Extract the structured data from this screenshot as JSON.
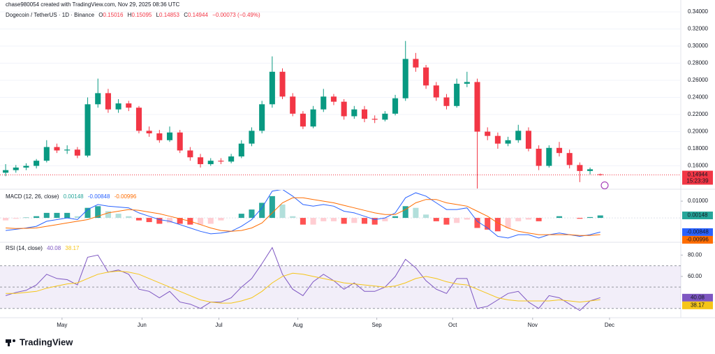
{
  "header": {
    "credit": "chase980054 created with TradingView.com, Nov 29, 2025 08:36 UTC",
    "ohlc_labels": [
      "O",
      "H",
      "L",
      "C"
    ],
    "change": "−0.00073 (−0.49%)",
    "countdown": "15:23:39",
    "brand": "TradingView"
  },
  "chart_data": [
    {
      "type": "candlestick",
      "title": "Dogecoin / TetherUS · 1D · Binance",
      "up_color": "#089981",
      "down_color": "#f23645",
      "grid": true,
      "xlim": [
        -0.55,
        65.85
      ],
      "ylim": [
        0.1335,
        0.3441
      ],
      "yticks": [
        {
          "value": 0.34,
          "label": "0.34000"
        },
        {
          "value": 0.32,
          "label": "0.32000"
        },
        {
          "value": 0.3,
          "label": "0.30000"
        },
        {
          "value": 0.28,
          "label": "0.28000"
        },
        {
          "value": 0.26,
          "label": "0.26000"
        },
        {
          "value": 0.24,
          "label": "0.24000"
        },
        {
          "value": 0.22,
          "label": "0.22000"
        },
        {
          "value": 0.2,
          "label": "0.20000"
        },
        {
          "value": 0.18,
          "label": "0.18000"
        },
        {
          "value": 0.16,
          "label": "0.16000"
        }
      ],
      "open": [
        0.152,
        0.155,
        0.158,
        0.16,
        0.166,
        0.182,
        0.178,
        0.179,
        0.172,
        0.232,
        0.245,
        0.226,
        0.233,
        0.228,
        0.201,
        0.198,
        0.19,
        0.199,
        0.178,
        0.17,
        0.162,
        0.166,
        0.165,
        0.171,
        0.186,
        0.201,
        0.232,
        0.27,
        0.241,
        0.221,
        0.206,
        0.226,
        0.241,
        0.235,
        0.218,
        0.226,
        0.215,
        0.214,
        0.221,
        0.239,
        0.285,
        0.275,
        0.254,
        0.24,
        0.23,
        0.256,
        0.258,
        0.2,
        0.195,
        0.186,
        0.19,
        0.201,
        0.18,
        0.16,
        0.181,
        0.175,
        0.161,
        0.154,
        0.15016
      ],
      "high": [
        0.162,
        0.161,
        0.163,
        0.168,
        0.19,
        0.186,
        0.184,
        0.182,
        0.24,
        0.262,
        0.25,
        0.238,
        0.236,
        0.23,
        0.206,
        0.202,
        0.206,
        0.202,
        0.182,
        0.174,
        0.169,
        0.169,
        0.174,
        0.19,
        0.205,
        0.236,
        0.288,
        0.274,
        0.245,
        0.224,
        0.23,
        0.25,
        0.244,
        0.238,
        0.23,
        0.23,
        0.219,
        0.224,
        0.243,
        0.306,
        0.292,
        0.278,
        0.258,
        0.244,
        0.262,
        0.27,
        0.262,
        0.205,
        0.199,
        0.194,
        0.208,
        0.205,
        0.184,
        0.184,
        0.188,
        0.179,
        0.164,
        0.158,
        0.15095
      ],
      "low": [
        0.148,
        0.152,
        0.155,
        0.157,
        0.164,
        0.175,
        0.174,
        0.169,
        0.17,
        0.228,
        0.222,
        0.222,
        0.224,
        0.198,
        0.194,
        0.187,
        0.188,
        0.175,
        0.166,
        0.158,
        0.16,
        0.162,
        0.163,
        0.169,
        0.183,
        0.198,
        0.228,
        0.238,
        0.218,
        0.203,
        0.204,
        0.223,
        0.231,
        0.214,
        0.215,
        0.211,
        0.21,
        0.212,
        0.219,
        0.236,
        0.27,
        0.25,
        0.236,
        0.226,
        0.228,
        0.252,
        0.133,
        0.19,
        0.18,
        0.183,
        0.187,
        0.177,
        0.155,
        0.158,
        0.171,
        0.157,
        0.141,
        0.15,
        0.14853
      ],
      "close": [
        0.155,
        0.158,
        0.16,
        0.166,
        0.182,
        0.178,
        0.179,
        0.172,
        0.232,
        0.245,
        0.226,
        0.233,
        0.228,
        0.201,
        0.198,
        0.19,
        0.199,
        0.178,
        0.17,
        0.162,
        0.166,
        0.165,
        0.171,
        0.186,
        0.201,
        0.232,
        0.27,
        0.241,
        0.221,
        0.206,
        0.226,
        0.241,
        0.235,
        0.218,
        0.226,
        0.215,
        0.214,
        0.221,
        0.239,
        0.285,
        0.275,
        0.254,
        0.24,
        0.23,
        0.256,
        0.258,
        0.2,
        0.195,
        0.186,
        0.19,
        0.201,
        0.18,
        0.16,
        0.181,
        0.175,
        0.161,
        0.154,
        0.156,
        0.14944
      ]
    },
    {
      "type": "macd",
      "title": "MACD (12, 26, close)",
      "xlim": [
        -0.55,
        65.85
      ],
      "ylim": [
        -0.0133,
        0.0167
      ],
      "yticks": [
        {
          "value": 0.01,
          "label": "0.01000"
        }
      ],
      "hist_colors": [
        "#26a69a",
        "#b2dfdb",
        "#ffcdd2",
        "#ff5252"
      ],
      "series": [
        {
          "name": "Histogram",
          "color": "#26a69a",
          "values": [
            -0.0015,
            -0.0005,
            0.0002,
            0.001,
            0.003,
            0.003,
            0.003,
            0.001,
            0.006,
            0.007,
            0.004,
            0.0025,
            0.001,
            -0.0015,
            -0.0025,
            -0.0035,
            -0.003,
            -0.0035,
            -0.004,
            -0.004,
            -0.0035,
            -0.0015,
            0,
            0.0025,
            0.005,
            0.009,
            0.013,
            0.008,
            0.001,
            -0.004,
            -0.004,
            -0.002,
            -0.002,
            -0.0035,
            -0.003,
            -0.0035,
            -0.004,
            -0.002,
            0.001,
            0.007,
            0.006,
            0.002,
            -0.002,
            -0.004,
            -0.003,
            -0.001,
            -0.006,
            -0.007,
            -0.008,
            -0.006,
            -0.002,
            -0.001,
            -0.002,
            0,
            0.001,
            0,
            -0.0005,
            0.0005,
            0.00148
          ]
        },
        {
          "name": "MACD",
          "color": "#2962ff",
          "values": [
            -0.0075,
            -0.0068,
            -0.006,
            -0.005,
            -0.002,
            -0.001,
            0.0,
            -0.001,
            0.005,
            0.008,
            0.007,
            0.0065,
            0.006,
            0.003,
            0.001,
            -0.001,
            -0.002,
            -0.004,
            -0.006,
            -0.008,
            -0.0095,
            -0.009,
            -0.008,
            -0.005,
            -0.001,
            0.006,
            0.016,
            0.017,
            0.013,
            0.008,
            0.007,
            0.008,
            0.007,
            0.004,
            0.003,
            0.001,
            -0.001,
            0.0,
            0.003,
            0.012,
            0.015,
            0.013,
            0.009,
            0.005,
            0.005,
            0.006,
            -0.002,
            -0.006,
            -0.011,
            -0.012,
            -0.01,
            -0.01,
            -0.012,
            -0.01,
            -0.009,
            -0.01,
            -0.011,
            -0.01,
            -0.00848
          ]
        },
        {
          "name": "Signal",
          "color": "#ff6d00",
          "values": [
            -0.006,
            -0.0063,
            -0.0062,
            -0.006,
            -0.005,
            -0.004,
            -0.003,
            -0.002,
            -0.001,
            0.001,
            0.003,
            0.004,
            0.005,
            0.0045,
            0.0035,
            0.0025,
            0.001,
            -0.0005,
            -0.002,
            -0.004,
            -0.006,
            -0.0075,
            -0.008,
            -0.0075,
            -0.006,
            -0.003,
            0.003,
            0.009,
            0.012,
            0.012,
            0.011,
            0.01,
            0.009,
            0.0075,
            0.006,
            0.0045,
            0.003,
            0.002,
            0.002,
            0.005,
            0.009,
            0.011,
            0.011,
            0.009,
            0.008,
            0.007,
            0.004,
            0.001,
            -0.003,
            -0.006,
            -0.008,
            -0.009,
            -0.01,
            -0.01,
            -0.01,
            -0.01,
            -0.0105,
            -0.0105,
            -0.00996
          ]
        }
      ]
    },
    {
      "type": "rsi",
      "title": "RSI (14, close)",
      "xlim": [
        -0.55,
        65.85
      ],
      "ylim": [
        23.3,
        90
      ],
      "yticks": [
        {
          "value": 80,
          "label": "80.00"
        },
        {
          "value": 60,
          "label": "60.00"
        }
      ],
      "bands": [
        70,
        50,
        30
      ],
      "band_color": "#7e57c2",
      "xticks": [
        {
          "value": 5.5,
          "label": "May"
        },
        {
          "value": 13.3,
          "label": "Jun"
        },
        {
          "value": 20.8,
          "label": "Jul"
        },
        {
          "value": 28.5,
          "label": "Aug"
        },
        {
          "value": 36.2,
          "label": "Sep"
        },
        {
          "value": 43.6,
          "label": "Oct"
        },
        {
          "value": 51.4,
          "label": "Nov"
        },
        {
          "value": 58.9,
          "label": "Dec"
        }
      ],
      "series": [
        {
          "name": "RSI",
          "color": "#7e57c2",
          "values": [
            42,
            45,
            47,
            52,
            62,
            58,
            57,
            52,
            78,
            80,
            64,
            66,
            62,
            48,
            46,
            40,
            46,
            36,
            34,
            30,
            36,
            36,
            40,
            50,
            58,
            72,
            87,
            62,
            48,
            42,
            55,
            62,
            56,
            48,
            54,
            46,
            46,
            50,
            60,
            76,
            68,
            56,
            48,
            44,
            58,
            58,
            30,
            32,
            38,
            44,
            46,
            36,
            30,
            42,
            40,
            34,
            28,
            37,
            40.08
          ]
        },
        {
          "name": "RSI MA",
          "color": "#f5c518",
          "values": [
            44,
            44,
            45,
            46,
            49,
            51,
            53,
            54,
            58,
            62,
            64,
            65,
            64,
            62,
            58,
            54,
            50,
            46,
            42,
            38,
            36,
            35,
            35,
            37,
            40,
            46,
            54,
            60,
            63,
            62,
            60,
            58,
            56,
            54,
            53,
            52,
            51,
            50,
            51,
            54,
            58,
            60,
            58,
            55,
            53,
            52,
            48,
            44,
            40,
            38,
            37,
            37,
            37,
            37,
            38,
            37,
            36,
            37,
            38.17
          ]
        }
      ]
    }
  ]
}
